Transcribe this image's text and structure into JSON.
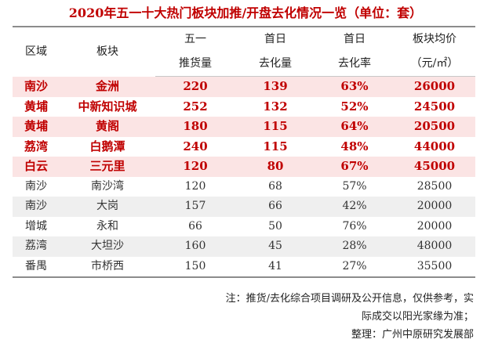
{
  "title": "2020年五一十大热门板块加推/开盘去化情况一览（单位：套）",
  "header": {
    "region": "区域",
    "block": "板块",
    "supply_l1": "五一",
    "supply_l2": "推货量",
    "sold_l1": "首日",
    "sold_l2": "去化量",
    "rate_l1": "首日",
    "rate_l2": "去化率",
    "price_l1": "板块均价",
    "price_l2": "（元/㎡）"
  },
  "rows": [
    {
      "region": "南沙",
      "block": "金洲",
      "supply": "220",
      "sold": "139",
      "rate": "63%",
      "price": "26000"
    },
    {
      "region": "黄埔",
      "block": "中新知识城",
      "supply": "252",
      "sold": "132",
      "rate": "52%",
      "price": "24500"
    },
    {
      "region": "黄埔",
      "block": "黄阁",
      "supply": "180",
      "sold": "115",
      "rate": "64%",
      "price": "20500"
    },
    {
      "region": "荔湾",
      "block": "白鹅潭",
      "supply": "240",
      "sold": "115",
      "rate": "48%",
      "price": "44000"
    },
    {
      "region": "白云",
      "block": "三元里",
      "supply": "120",
      "sold": "80",
      "rate": "67%",
      "price": "45000"
    },
    {
      "region": "南沙",
      "block": "南沙湾",
      "supply": "120",
      "sold": "68",
      "rate": "57%",
      "price": "28500"
    },
    {
      "region": "南沙",
      "block": "大岗",
      "supply": "157",
      "sold": "66",
      "rate": "42%",
      "price": "20000"
    },
    {
      "region": "增城",
      "block": "永和",
      "supply": "66",
      "sold": "50",
      "rate": "76%",
      "price": "20000"
    },
    {
      "region": "荔湾",
      "block": "大坦沙",
      "supply": "160",
      "sold": "45",
      "rate": "28%",
      "price": "48000"
    },
    {
      "region": "番禺",
      "block": "市桥西",
      "supply": "150",
      "sold": "41",
      "rate": "27%",
      "price": "35500"
    }
  ],
  "notes": {
    "line1": "注：推货/去化综合项目调研及公开信息，仅供参考，实",
    "line2": "际成交以阳光家缘为准；",
    "line3": "整理：广州中原研究发展部"
  },
  "colors": {
    "accent": "#c00000",
    "highlight_row": "#fbe4e4",
    "plain_row": "#efefef"
  }
}
